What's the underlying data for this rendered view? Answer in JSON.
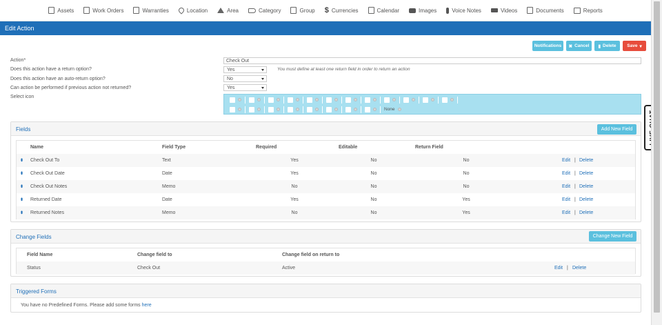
{
  "nav": [
    {
      "label": "Assets",
      "icon": "document-icon"
    },
    {
      "label": "Work Orders",
      "icon": "document-icon"
    },
    {
      "label": "Warranties",
      "icon": "warranty-icon"
    },
    {
      "label": "Location",
      "icon": "pin-icon"
    },
    {
      "label": "Area",
      "icon": "home-icon"
    },
    {
      "label": "Category",
      "icon": "tag-icon"
    },
    {
      "label": "Group",
      "icon": "document-icon"
    },
    {
      "label": "Currencies",
      "icon": "dollar-icon"
    },
    {
      "label": "Calendar",
      "icon": "calendar-icon"
    },
    {
      "label": "Images",
      "icon": "camera-icon"
    },
    {
      "label": "Voice Notes",
      "icon": "mic-icon"
    },
    {
      "label": "Videos",
      "icon": "video-icon"
    },
    {
      "label": "Documents",
      "icon": "document-icon"
    },
    {
      "label": "Reports",
      "icon": "pencil-icon"
    }
  ],
  "live_chat": "LIVE CHAT",
  "header": {
    "title": "Edit Action"
  },
  "buttons": {
    "notifications": "Notifications",
    "cancel": "Cancel",
    "delete": "Delete",
    "save": "Save"
  },
  "form": {
    "action_label": "Action*",
    "action_value": "Check Out",
    "return_label": "Does this action have a return option?",
    "return_value": "Yes",
    "return_hint": "You must define at least one return field in order to return an action",
    "auto_return_label": "Does this action have an auto-return option?",
    "auto_return_value": "No",
    "prev_label": "Can action be performed if previous action not returned?",
    "prev_value": "Yes",
    "icon_label": "Select icon",
    "icon_none": "None"
  },
  "icon_picker": {
    "row1": [
      "heart",
      "envelope",
      "cart",
      "times",
      "mail",
      "trash",
      "question",
      "wrench",
      "bulb",
      "lock",
      "plus",
      "briefcase"
    ],
    "row2": [
      "print",
      "undo",
      "save",
      "search",
      "shield",
      "user",
      "tools",
      "sort"
    ]
  },
  "fields_panel": {
    "title": "Fields",
    "add_button": "Add New Field",
    "headers": {
      "name": "Name",
      "type": "Field Type",
      "required": "Required",
      "editable": "Editable",
      "return": "Return Field"
    },
    "rows": [
      {
        "name": "Check Out To",
        "type": "Text",
        "required": "Yes",
        "editable": "No",
        "return": "No"
      },
      {
        "name": "Check Out Date",
        "type": "Date",
        "required": "Yes",
        "editable": "No",
        "return": "No"
      },
      {
        "name": "Check Out Notes",
        "type": "Memo",
        "required": "No",
        "editable": "No",
        "return": "No"
      },
      {
        "name": "Returned Date",
        "type": "Date",
        "required": "Yes",
        "editable": "No",
        "return": "Yes"
      },
      {
        "name": "Returned Notes",
        "type": "Memo",
        "required": "No",
        "editable": "No",
        "return": "Yes"
      }
    ],
    "edit": "Edit",
    "delete": "Delete",
    "sep": "|"
  },
  "change_panel": {
    "title": "Change Fields",
    "button": "Change New Field",
    "headers": {
      "name": "Field Name",
      "to": "Change field to",
      "on_return": "Change field on return to"
    },
    "rows": [
      {
        "name": "Status",
        "to": "Check Out",
        "on_return": "Active"
      }
    ],
    "edit": "Edit",
    "delete": "Delete",
    "sep": "|"
  },
  "forms_panel": {
    "title": "Triggered Forms",
    "message": "You have no Predefined Forms. Please add some forms",
    "link": "here"
  }
}
